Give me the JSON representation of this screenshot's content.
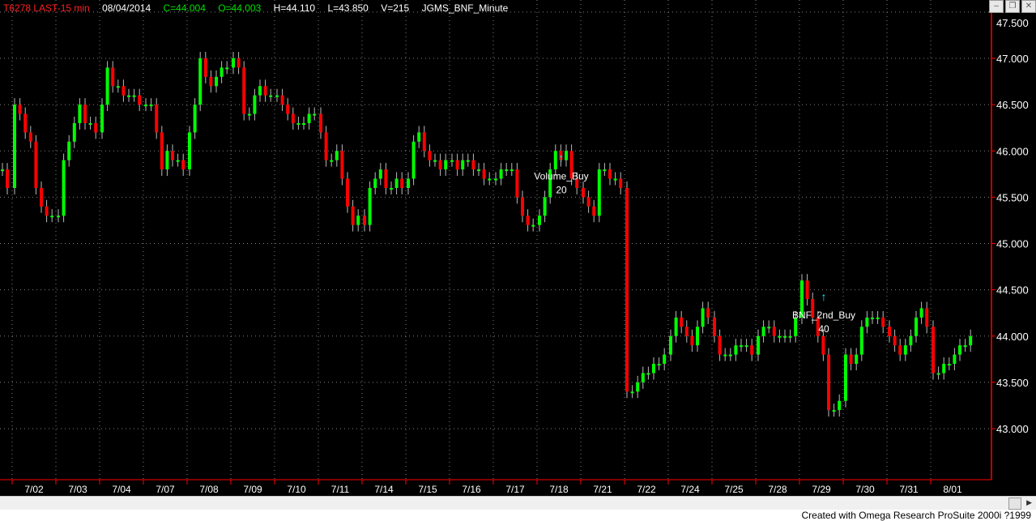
{
  "header": {
    "symbol": "T6278 LAST-15 min",
    "date": "08/04/2014",
    "close": "C=44.004",
    "open": "O=44.003",
    "high": "H=44.110",
    "low": "L=43.850",
    "volume": "V=215",
    "strategy": "JGMS_BNF_Minute"
  },
  "window_buttons": {
    "minimize": "–",
    "restore": "❐",
    "close": "✕"
  },
  "footer": "Created with Omega Research ProSuite 2000i ?1999",
  "colors": {
    "up": "#00ff00",
    "down": "#ff0000",
    "axis": "#ff0000",
    "grid": "#808080",
    "marker": "#00ffff",
    "background": "#000000"
  },
  "chart_data": {
    "type": "bar",
    "subtype": "ohlc-minute-bars",
    "price_axis": {
      "ticks": [
        "43.000",
        "43.500",
        "44.000",
        "44.500",
        "45.000",
        "45.500",
        "46.000",
        "46.500",
        "47.000",
        "47.500"
      ],
      "range": [
        42.5,
        47.6
      ],
      "side": "right"
    },
    "date_ticks": [
      "7/02",
      "7/03",
      "7/04",
      "7/07",
      "7/08",
      "7/09",
      "7/10",
      "7/11",
      "7/14",
      "7/15",
      "7/16",
      "7/17",
      "7/18",
      "7/21",
      "7/22",
      "7/24",
      "7/25",
      "7/28",
      "7/29",
      "7/30",
      "7/31",
      "8/01"
    ],
    "grid": true,
    "lead_closes": [
      45.8,
      45.6
    ],
    "daily_closes": [
      [
        46.5,
        46.4,
        46.2,
        46.1,
        45.6,
        45.4,
        45.3,
        45.3
      ],
      [
        45.3,
        45.9,
        46.1,
        46.3,
        46.5,
        46.3,
        46.3,
        46.2
      ],
      [
        46.5,
        46.9,
        46.7,
        46.7,
        46.6,
        46.6,
        46.6,
        46.5
      ],
      [
        46.5,
        46.5,
        46.2,
        45.8,
        46.0,
        45.9,
        45.9,
        45.8
      ],
      [
        46.2,
        46.5,
        47.0,
        46.8,
        46.7,
        46.8,
        46.9,
        46.9
      ],
      [
        47.0,
        46.9,
        46.4,
        46.4,
        46.6,
        46.7,
        46.6,
        46.6
      ],
      [
        46.6,
        46.5,
        46.4,
        46.3,
        46.3,
        46.3,
        46.4,
        46.4
      ],
      [
        46.2,
        45.9,
        45.9,
        46.0,
        45.7,
        45.4,
        45.2,
        45.3
      ],
      [
        45.2,
        45.6,
        45.7,
        45.8,
        45.6,
        45.6,
        45.7,
        45.6
      ],
      [
        45.7,
        46.1,
        46.2,
        46.0,
        45.9,
        45.9,
        45.8,
        45.9
      ],
      [
        45.9,
        45.8,
        45.9,
        45.9,
        45.8,
        45.8,
        45.7,
        45.7
      ],
      [
        45.7,
        45.8,
        45.8,
        45.8,
        45.5,
        45.3,
        45.2,
        45.2
      ],
      [
        45.3,
        45.5,
        45.8,
        46.0,
        45.9,
        46.0,
        45.7,
        45.6
      ],
      [
        45.5,
        45.4,
        45.3,
        45.8,
        45.8,
        45.7,
        45.7,
        45.6
      ],
      [
        43.4,
        43.4,
        43.5,
        43.6,
        43.6,
        43.7,
        43.7,
        43.8
      ],
      [
        44.0,
        44.2,
        44.1,
        44.0,
        43.9,
        44.1,
        44.3,
        44.2
      ],
      [
        44.0,
        43.8,
        43.8,
        43.8,
        43.9,
        43.9,
        43.9,
        43.8
      ],
      [
        44.0,
        44.1,
        44.1,
        44.0,
        44.0,
        44.0,
        44.0,
        44.2
      ],
      [
        44.6,
        44.4,
        44.2,
        44.0,
        43.8,
        43.2,
        43.2,
        43.3
      ],
      [
        43.8,
        43.7,
        43.8,
        44.1,
        44.2,
        44.2,
        44.2,
        44.1
      ],
      [
        44.0,
        43.9,
        43.8,
        43.9,
        44.0,
        44.2,
        44.3,
        44.1
      ],
      [
        43.6,
        43.6,
        43.7,
        43.7,
        43.8,
        43.9,
        43.9,
        44.0
      ]
    ],
    "annotations": [
      {
        "label": "Volume_Buy",
        "qty": "20",
        "date": "7/18",
        "price": 45.85
      },
      {
        "label": "BNF_2nd_Buy",
        "qty": "40",
        "date": "7/29",
        "price": 44.35
      }
    ]
  }
}
